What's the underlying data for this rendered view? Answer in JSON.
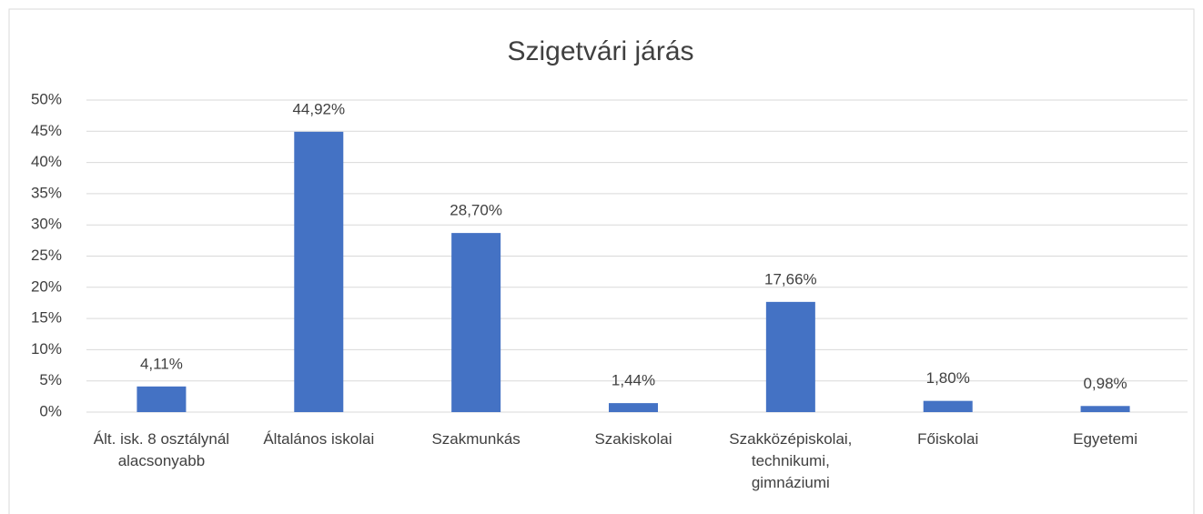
{
  "chart_data": {
    "type": "bar",
    "title": "Szigetvári járás",
    "categories": [
      "Ált. isk. 8 osztálynál alacsonyabb",
      "Általános iskolai",
      "Szakmunkás",
      "Szakiskolai",
      "Szakközépiskolai, technikumi, gimnáziumi",
      "Főiskolai",
      "Egyetemi"
    ],
    "values": [
      4.11,
      44.92,
      28.7,
      1.44,
      17.66,
      1.8,
      0.98
    ],
    "value_labels": [
      "4,11%",
      "44,92%",
      "28,70%",
      "1,44%",
      "17,66%",
      "1,80%",
      "0,98%"
    ],
    "color": "#4472c4",
    "ylim": [
      0,
      50
    ],
    "yticks": [
      {
        "value": 0,
        "label": "0%"
      },
      {
        "value": 5,
        "label": "5%"
      },
      {
        "value": 10,
        "label": "10%"
      },
      {
        "value": 15,
        "label": "15%"
      },
      {
        "value": 20,
        "label": "20%"
      },
      {
        "value": 25,
        "label": "25%"
      },
      {
        "value": 30,
        "label": "30%"
      },
      {
        "value": 35,
        "label": "35%"
      },
      {
        "value": 40,
        "label": "40%"
      },
      {
        "value": 45,
        "label": "45%"
      },
      {
        "value": 50,
        "label": "50%"
      }
    ],
    "grid": true
  }
}
